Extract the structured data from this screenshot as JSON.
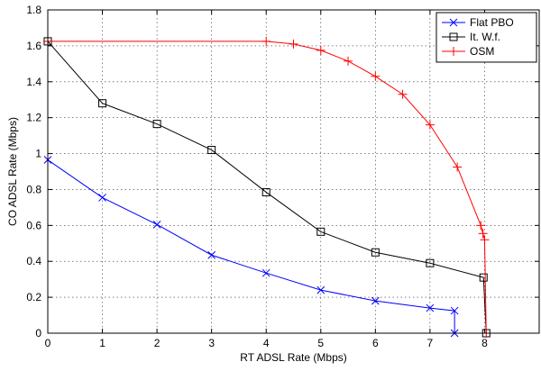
{
  "chart_data": {
    "type": "line",
    "title": "",
    "xlabel": "RT ADSL Rate (Mbps)",
    "ylabel": "CO ADSL Rate (Mbps)",
    "xlim": [
      0,
      9
    ],
    "ylim": [
      0,
      1.8
    ],
    "xticks": [
      0,
      1,
      2,
      3,
      4,
      5,
      6,
      7,
      8
    ],
    "yticks": [
      0,
      0.2,
      0.4,
      0.6,
      0.8,
      1,
      1.2,
      1.4,
      1.6,
      1.8
    ],
    "xtick_labels": [
      "0",
      "1",
      "2",
      "3",
      "4",
      "5",
      "6",
      "7",
      "8"
    ],
    "ytick_labels": [
      "0",
      "0.2",
      "0.4",
      "0.6",
      "0.8",
      "1",
      "1.2",
      "1.4",
      "1.6",
      "1.8"
    ],
    "grid": true,
    "legend_position": "top-right",
    "series": [
      {
        "name": "Flat PBO",
        "color": "#0000ff",
        "marker": "x",
        "x": [
          0,
          1,
          2,
          3,
          4,
          5,
          6,
          7,
          7.45,
          7.45
        ],
        "y": [
          0.965,
          0.755,
          0.605,
          0.435,
          0.335,
          0.24,
          0.18,
          0.14,
          0.125,
          0.0
        ]
      },
      {
        "name": "It. W.f.",
        "color": "#000000",
        "marker": "square",
        "x": [
          0,
          1,
          2,
          3,
          4,
          5,
          6,
          7,
          7.98,
          8.03
        ],
        "y": [
          1.625,
          1.28,
          1.165,
          1.02,
          0.785,
          0.565,
          0.45,
          0.39,
          0.31,
          0.0
        ]
      },
      {
        "name": "OSM",
        "color": "#ff0000",
        "marker": "plus",
        "x": [
          0,
          4.0,
          4.5,
          5.0,
          5.5,
          6.0,
          6.5,
          7.0,
          7.5,
          7.93,
          7.97,
          8.0,
          8.03
        ],
        "y": [
          1.625,
          1.625,
          1.61,
          1.575,
          1.515,
          1.43,
          1.33,
          1.16,
          0.925,
          0.6,
          0.555,
          0.52,
          0.0
        ]
      }
    ]
  }
}
